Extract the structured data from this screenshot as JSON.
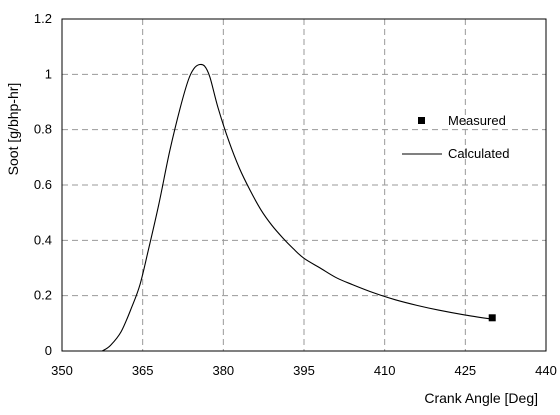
{
  "chart_data": {
    "type": "line",
    "title": "",
    "xlabel": "Crank Angle [Deg]",
    "ylabel": "Soot [g/bhp-hr]",
    "xlim": [
      350,
      440
    ],
    "ylim": [
      0,
      1.2
    ],
    "xticks": [
      "350",
      "365",
      "380",
      "395",
      "410",
      "425",
      "440"
    ],
    "yticks": [
      "0",
      "0.2",
      "0.4",
      "0.6",
      "0.8",
      "1",
      "1.2"
    ],
    "grid": true,
    "legend_position": "right",
    "series": [
      {
        "name": "Measured",
        "type": "scatter",
        "marker": "square",
        "color": "#000000",
        "x": [
          430
        ],
        "y": [
          0.12
        ]
      },
      {
        "name": "Calculated",
        "type": "line",
        "color": "#000000",
        "x": [
          357.5,
          359,
          361,
          363,
          364.5,
          366,
          368,
          370,
          372,
          373.5,
          374.5,
          375.5,
          376.5,
          377.5,
          379,
          381,
          383,
          385,
          387,
          389,
          391,
          393,
          395,
          398,
          401,
          404,
          408,
          412,
          416,
          420,
          425,
          430
        ],
        "y": [
          0,
          0.02,
          0.07,
          0.16,
          0.24,
          0.36,
          0.53,
          0.72,
          0.88,
          0.98,
          1.02,
          1.035,
          1.03,
          0.99,
          0.88,
          0.76,
          0.66,
          0.58,
          0.51,
          0.455,
          0.41,
          0.37,
          0.335,
          0.3,
          0.265,
          0.24,
          0.21,
          0.185,
          0.165,
          0.148,
          0.13,
          0.115
        ]
      }
    ]
  }
}
